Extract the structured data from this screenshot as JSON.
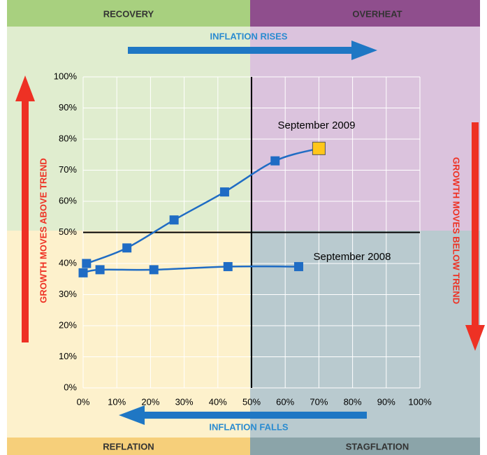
{
  "chart_data": {
    "type": "line",
    "quadrants": {
      "top_left": "RECOVERY",
      "top_right": "OVERHEAT",
      "bottom_left": "REFLATION",
      "bottom_right": "STAGFLATION"
    },
    "directions": {
      "top": "INFLATION RISES",
      "bottom": "INFLATION FALLS",
      "left": "GROWTH MOVES ABOVE TREND",
      "right": "GROWTH MOVES BELOW TREND"
    },
    "annotations": [
      "September 2009",
      "September 2008"
    ],
    "series": [
      {
        "name": "September 2009",
        "color": "#1f6cc4",
        "highlight_color": "#ffc61a",
        "x": [
          1,
          13,
          27,
          42,
          57,
          70
        ],
        "values": [
          40,
          45,
          54,
          63,
          73,
          77
        ]
      },
      {
        "name": "September 2008",
        "color": "#1f6cc4",
        "x": [
          0,
          5,
          21,
          43,
          64
        ],
        "values": [
          37,
          38,
          38,
          39,
          39
        ]
      }
    ],
    "xlim": [
      0,
      100
    ],
    "xticks": [
      {
        "value": 0,
        "label": "0%"
      },
      {
        "value": 10,
        "label": "10%"
      },
      {
        "value": 20,
        "label": "20%"
      },
      {
        "value": 30,
        "label": "30%"
      },
      {
        "value": 40,
        "label": "40%"
      },
      {
        "value": 50,
        "label": "50%"
      },
      {
        "value": 60,
        "label": "60%"
      },
      {
        "value": 70,
        "label": "70%"
      },
      {
        "value": 80,
        "label": "80%"
      },
      {
        "value": 90,
        "label": "90%"
      },
      {
        "value": 100,
        "label": "100%"
      }
    ],
    "ylim": [
      0,
      100
    ],
    "yticks": [
      {
        "value": 0,
        "label": "0%"
      },
      {
        "value": 10,
        "label": "10%"
      },
      {
        "value": 20,
        "label": "20%"
      },
      {
        "value": 30,
        "label": "30%"
      },
      {
        "value": 40,
        "label": "40%"
      },
      {
        "value": 50,
        "label": "50%"
      },
      {
        "value": 60,
        "label": "60%"
      },
      {
        "value": 70,
        "label": "70%"
      },
      {
        "value": 80,
        "label": "80%"
      },
      {
        "value": 90,
        "label": "90%"
      },
      {
        "value": 100,
        "label": "100%"
      }
    ],
    "grid": true,
    "divider": 50
  }
}
